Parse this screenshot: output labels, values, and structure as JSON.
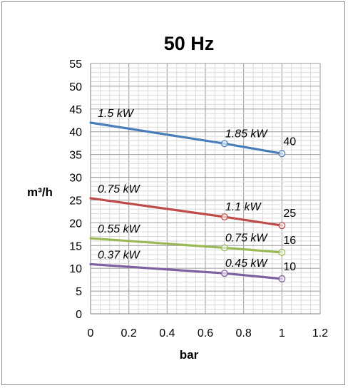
{
  "chart_data": {
    "type": "line",
    "title": "50 Hz",
    "xlabel": "bar",
    "ylabel": "m³/h",
    "xlim": [
      0,
      1.2
    ],
    "ylim": [
      0,
      55
    ],
    "x_ticks": [
      "0",
      "0.2",
      "0.4",
      "0.6",
      "0.8",
      "1",
      "1.2"
    ],
    "y_ticks": [
      "0",
      "5",
      "10",
      "15",
      "20",
      "25",
      "30",
      "35",
      "40",
      "45",
      "50",
      "55"
    ],
    "grid": true,
    "legend": "none",
    "x": [
      0,
      0.7,
      1
    ],
    "series": [
      {
        "values": [
          42,
          37.4,
          35.2
        ],
        "color": "#4a7ebb",
        "label_start": "1.5 kW",
        "label_mid": "1.85 kW",
        "label_end": "40"
      },
      {
        "values": [
          25.4,
          21.3,
          19.4
        ],
        "color": "#be4b48",
        "label_start": "0.75 kW",
        "label_mid": "1.1 kW",
        "label_end": "25"
      },
      {
        "values": [
          16.6,
          14.5,
          13.5
        ],
        "color": "#98b954",
        "label_start": "0.55 kW",
        "label_mid": "0.75 kW",
        "label_end": "16"
      },
      {
        "values": [
          10.9,
          8.9,
          7.7
        ],
        "color": "#7d60a0",
        "label_start": "0.37 kW",
        "label_mid": "0.45 kW",
        "label_end": "10"
      }
    ]
  }
}
